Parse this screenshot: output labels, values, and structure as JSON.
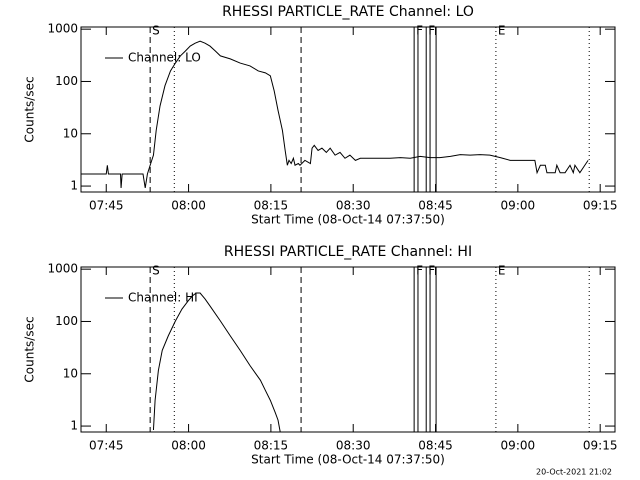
{
  "chart_data": [
    {
      "type": "line",
      "title": "RHESSI PARTICLE_RATE Channel: LO",
      "xlabel": "Start Time (08-Oct-14 07:37:50)",
      "ylabel": "Counts/sec",
      "log_y": true,
      "legend": "upper left",
      "xlim": [
        460.4,
        557.7
      ],
      "ylim": [
        0.77,
        1100
      ],
      "xticks": [
        {
          "value": 465,
          "label": "07:45"
        },
        {
          "value": 480,
          "label": "08:00"
        },
        {
          "value": 495,
          "label": "08:15"
        },
        {
          "value": 510,
          "label": "08:30"
        },
        {
          "value": 525,
          "label": "08:45"
        },
        {
          "value": 540,
          "label": "09:00"
        },
        {
          "value": 555,
          "label": "09:15"
        }
      ],
      "yticks": [
        1,
        10,
        100,
        1000
      ],
      "vlines": [
        {
          "x": 473.0,
          "style": "dashed",
          "label": "S"
        },
        {
          "x": 477.4,
          "style": "dotted"
        },
        {
          "x": 500.5,
          "style": "dashed"
        },
        {
          "x": 521.1,
          "style": "solid",
          "label": "F"
        },
        {
          "x": 521.8,
          "style": "solid"
        },
        {
          "x": 523.3,
          "style": "solid",
          "label": "F"
        },
        {
          "x": 524.0,
          "style": "solid"
        },
        {
          "x": 525.1,
          "style": "solid"
        },
        {
          "x": 536.0,
          "style": "dotted",
          "label": "E"
        },
        {
          "x": 553.0,
          "style": "dotted"
        }
      ],
      "x": [
        460.4,
        465,
        465.2,
        465.4,
        467.6,
        467.7,
        467.9,
        471.7,
        472.1,
        472.5,
        473.0,
        473.6,
        474.1,
        474.8,
        475.7,
        476.7,
        477.6,
        478.5,
        479.4,
        480.3,
        481.2,
        482.1,
        483.0,
        483.9,
        484.9,
        485.8,
        487.6,
        489.4,
        491.2,
        492.7,
        494.0,
        494.9,
        495.6,
        496.3,
        497.1,
        497.6,
        498.0,
        498.3,
        498.7,
        499.1,
        499.4,
        500.0,
        500.3,
        501.2,
        502.2,
        502.5,
        502.9,
        503.6,
        504.3,
        505.1,
        505.8,
        506.7,
        507.6,
        508.5,
        509.4,
        510.4,
        511.3,
        513.1,
        514.9,
        516.7,
        518.6,
        520.4,
        522.2,
        524.0,
        525.8,
        527.7,
        529.5,
        531.3,
        533.1,
        534.9,
        536.8,
        538.6,
        540.4,
        542.2,
        543.1,
        543.5,
        544.1,
        545.0,
        545.3,
        546.8,
        547.1,
        547.7,
        548.6,
        549.5,
        550.1,
        550.4,
        551.3,
        552.2,
        552.8
      ],
      "series": [
        {
          "name": "Channel: LO",
          "color": "#000000",
          "values": [
            1.7,
            1.7,
            2.5,
            1.7,
            1.7,
            0.92,
            1.7,
            1.7,
            0.92,
            1.7,
            2.5,
            3.9,
            11.6,
            34,
            83,
            159,
            225,
            308,
            380,
            475,
            540,
            590,
            540,
            475,
            380,
            308,
            270,
            225,
            198,
            159,
            146,
            128,
            66,
            28,
            11.6,
            4.8,
            2.5,
            3.1,
            2.7,
            3.4,
            2.5,
            2.7,
            2.5,
            3.1,
            2.7,
            5.3,
            6.0,
            4.8,
            5.3,
            4.4,
            5.3,
            3.9,
            4.4,
            3.4,
            3.9,
            3.1,
            3.4,
            3.4,
            3.4,
            3.4,
            3.5,
            3.4,
            3.7,
            3.5,
            3.5,
            3.7,
            4.0,
            3.9,
            4.0,
            3.9,
            3.5,
            3.1,
            3.1,
            3.1,
            3.1,
            1.8,
            2.5,
            2.5,
            1.8,
            1.8,
            2.5,
            1.8,
            1.8,
            2.5,
            1.8,
            2.5,
            1.8,
            2.5,
            3.1
          ]
        }
      ]
    },
    {
      "type": "line",
      "title": "RHESSI PARTICLE_RATE Channel: HI",
      "xlabel": "Start Time (08-Oct-14 07:37:50)",
      "ylabel": "Counts/sec",
      "log_y": true,
      "legend": "upper left",
      "xlim": [
        460.4,
        557.7
      ],
      "ylim": [
        0.77,
        1100
      ],
      "xticks": [
        {
          "value": 465,
          "label": "07:45"
        },
        {
          "value": 480,
          "label": "08:00"
        },
        {
          "value": 495,
          "label": "08:15"
        },
        {
          "value": 510,
          "label": "08:30"
        },
        {
          "value": 525,
          "label": "08:45"
        },
        {
          "value": 540,
          "label": "09:00"
        },
        {
          "value": 555,
          "label": "09:15"
        }
      ],
      "yticks": [
        1,
        10,
        100,
        1000
      ],
      "vlines": [
        {
          "x": 473.0,
          "style": "dashed",
          "label": "S"
        },
        {
          "x": 477.4,
          "style": "dotted"
        },
        {
          "x": 500.5,
          "style": "dashed"
        },
        {
          "x": 521.1,
          "style": "solid",
          "label": "F"
        },
        {
          "x": 521.8,
          "style": "solid"
        },
        {
          "x": 523.3,
          "style": "solid",
          "label": "F"
        },
        {
          "x": 524.0,
          "style": "solid"
        },
        {
          "x": 525.1,
          "style": "solid"
        },
        {
          "x": 536.0,
          "style": "dotted",
          "label": "E"
        },
        {
          "x": 553.0,
          "style": "dotted"
        }
      ],
      "x": [
        473.6,
        473.9,
        474.5,
        475.2,
        476.3,
        477.6,
        478.8,
        479.9,
        480.7,
        481.4,
        482.1,
        483.0,
        483.9,
        485.8,
        487.6,
        489.4,
        491.2,
        493.1,
        494.0,
        494.9,
        495.8,
        496.3,
        496.7
      ],
      "series": [
        {
          "name": "Channel: HI",
          "color": "#000000",
          "values": [
            0.84,
            3.1,
            11.6,
            28,
            53,
            102,
            173,
            245,
            308,
            350,
            350,
            270,
            198,
            102,
            53,
            28,
            14.3,
            7.5,
            4.8,
            3.1,
            1.8,
            1.3,
            0.77
          ]
        }
      ]
    }
  ],
  "timestamp": "20-Oct-2021 21:02"
}
